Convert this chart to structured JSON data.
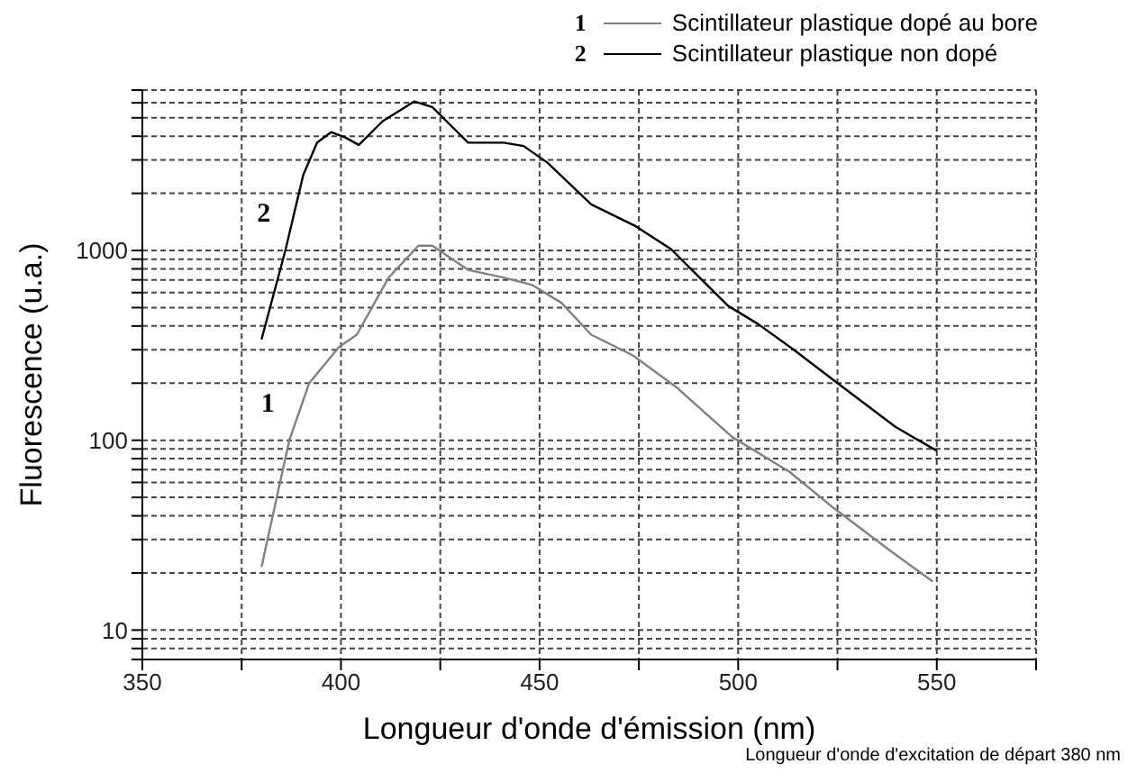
{
  "chart_data": {
    "type": "line",
    "xlabel": "Longueur d'onde d'émission (nm)",
    "ylabel": "Fluorescence (u.a.)",
    "log": "y",
    "grid": true,
    "legend": "top right",
    "marker": "none",
    "line_style": "solid",
    "xlim": [
      350,
      575
    ],
    "xticks": [
      350,
      {
        "value": 375,
        "label": null
      },
      400,
      {
        "value": 425,
        "label": null
      },
      450,
      {
        "value": 475,
        "label": null
      },
      500,
      {
        "value": 525,
        "label": null
      },
      550,
      {
        "value": 575,
        "label": null
      }
    ],
    "ylim": [
      7,
      7000
    ],
    "yticks": [
      {
        "value": 7,
        "label": null
      },
      {
        "value": 8,
        "label": null
      },
      {
        "value": 9,
        "label": null
      },
      10,
      {
        "value": 20,
        "label": null
      },
      {
        "value": 30,
        "label": null
      },
      {
        "value": 40,
        "label": null
      },
      {
        "value": 50,
        "label": null
      },
      {
        "value": 60,
        "label": null
      },
      {
        "value": 70,
        "label": null
      },
      {
        "value": 80,
        "label": null
      },
      {
        "value": 90,
        "label": null
      },
      100,
      {
        "value": 200,
        "label": null
      },
      {
        "value": 300,
        "label": null
      },
      {
        "value": 400,
        "label": null
      },
      {
        "value": 500,
        "label": null
      },
      {
        "value": 600,
        "label": null
      },
      {
        "value": 700,
        "label": null
      },
      {
        "value": 800,
        "label": null
      },
      {
        "value": 900,
        "label": null
      },
      1000,
      {
        "value": 2000,
        "label": null
      },
      {
        "value": 3000,
        "label": null
      },
      {
        "value": 4000,
        "label": null
      },
      {
        "value": 5000,
        "label": null
      },
      {
        "value": 6000,
        "label": null
      },
      {
        "value": 7000,
        "label": null
      }
    ],
    "series": [
      {
        "name": "Scintillateur plastique dopé au bore",
        "color": "#808080",
        "x": [
          380,
          387,
          392,
          399.5,
          404,
          412,
          419.5,
          423,
          432,
          441,
          448,
          455.5,
          463,
          473.5,
          484.5,
          498.5,
          513,
          524,
          538.5,
          549
        ],
        "values": [
          21.5,
          100,
          200,
          310,
          360,
          720,
          1060,
          1060,
          790,
          720,
          660,
          530,
          360,
          280,
          190,
          104,
          68,
          44,
          26,
          18
        ]
      },
      {
        "name": "Scintillateur plastique non dopé",
        "color": "#000000",
        "x": [
          380,
          386,
          390.5,
          394,
          397.5,
          401,
          404.5,
          410.5,
          418.5,
          423,
          432,
          441,
          446,
          452,
          463,
          474,
          483,
          497.5,
          505,
          514,
          525,
          539.5,
          550
        ],
        "values": [
          340,
          1000,
          2500,
          3700,
          4200,
          3950,
          3600,
          4800,
          6100,
          5700,
          3700,
          3700,
          3550,
          2900,
          1750,
          1350,
          1020,
          510,
          410,
          300,
          200,
          118,
          88
        ]
      }
    ],
    "annotations": [
      "1",
      "2",
      "Longueur d'onde d'excitation de départ 380 nm"
    ]
  }
}
